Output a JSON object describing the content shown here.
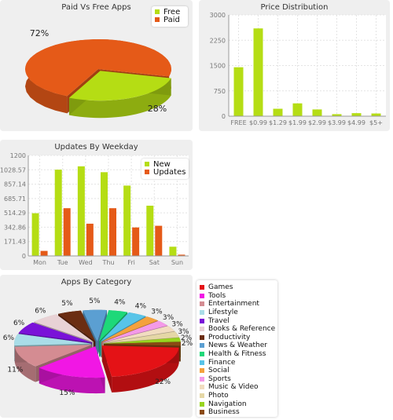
{
  "chart_data": [
    {
      "type": "pie",
      "title": "Paid Vs Free Apps",
      "labels": [
        "Free",
        "Paid"
      ],
      "values": [
        28,
        72
      ],
      "value_labels": [
        "28%",
        "72%"
      ],
      "colors": [
        "#b5dd14",
        "#e55a18"
      ],
      "legend": "top-right"
    },
    {
      "type": "bar",
      "title": "Price Distribution",
      "categories": [
        "FREE",
        "$0.99",
        "$1.29",
        "$1.99",
        "$2.99",
        "$3.99",
        "$4.99",
        "$5+"
      ],
      "values": [
        1450,
        2600,
        220,
        380,
        200,
        60,
        90,
        80
      ],
      "ylim": [
        0,
        3000
      ],
      "yticks": [
        "0",
        "750",
        "1500",
        "2250",
        "3000"
      ],
      "colors": [
        "#b5dd14"
      ],
      "grid": true
    },
    {
      "type": "bar",
      "title": "Updates By Weekday",
      "categories": [
        "Mon",
        "Tue",
        "Wed",
        "Thu",
        "Fri",
        "Sat",
        "Sun"
      ],
      "series": [
        {
          "name": "New",
          "values": [
            510,
            1030,
            1070,
            1000,
            840,
            600,
            110
          ]
        },
        {
          "name": "Updates",
          "values": [
            60,
            570,
            385,
            570,
            340,
            360,
            15
          ]
        }
      ],
      "ylim": [
        0,
        1200
      ],
      "yticks": [
        "0",
        "171.43",
        "342.86",
        "514.29",
        "685.71",
        "857.14",
        "1028.57",
        "1200"
      ],
      "colors": [
        "#b5dd14",
        "#e55a18"
      ],
      "legend": "top-right",
      "grid": true
    },
    {
      "type": "pie",
      "title": "Apps By Category",
      "labels": [
        "Games",
        "Tools",
        "Entertainment",
        "Lifestyle",
        "Travel",
        "Books & Reference",
        "Productivity",
        "News & Weather",
        "Health & Fitness",
        "Finance",
        "Social",
        "Sports",
        "Music & Video",
        "Photo",
        "Navigation",
        "Business"
      ],
      "values": [
        22,
        15,
        11,
        6,
        6,
        6,
        5,
        5,
        4,
        4,
        3,
        3,
        3,
        3,
        2,
        2
      ],
      "value_labels": [
        "22%",
        "15%",
        "11%",
        "6%",
        "6%",
        "6%",
        "5%",
        "5%",
        "4%",
        "4%",
        "3%",
        "3%",
        "3%",
        "3%",
        "2%",
        "2%"
      ],
      "colors": [
        "#e41216",
        "#f117e4",
        "#d48c92",
        "#a9dde8",
        "#7a12d8",
        "#e8d2d5",
        "#6b2d12",
        "#5b9fd2",
        "#1ed879",
        "#58c4e8",
        "#f4a13d",
        "#f49ae8",
        "#f1dcc0",
        "#e5d7a6",
        "#98d41f",
        "#8a4a14"
      ],
      "legend": "right"
    }
  ]
}
